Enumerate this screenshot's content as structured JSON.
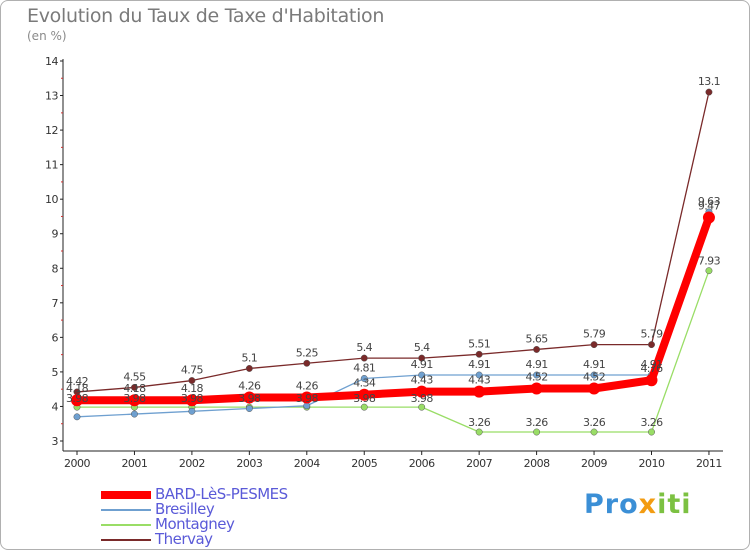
{
  "chart_data": {
    "type": "line",
    "title": "Evolution du Taux de Taxe d'Habitation",
    "subtitle": "(en %)",
    "xlabel": "",
    "ylabel": "",
    "x": [
      "2000",
      "2001",
      "2002",
      "2003",
      "2004",
      "2005",
      "2006",
      "2007",
      "2008",
      "2009",
      "2010",
      "2011"
    ],
    "ylim": [
      3,
      14
    ],
    "yticks": [
      3,
      4,
      5,
      6,
      7,
      8,
      9,
      10,
      11,
      12,
      13,
      14
    ],
    "grid": false,
    "legend_position": "bottom-left",
    "series": [
      {
        "name": "BARD-LèS-PESMES",
        "color": "#ff0000",
        "emphasis": true,
        "values": [
          4.18,
          4.18,
          4.18,
          4.26,
          4.26,
          4.34,
          4.43,
          4.43,
          4.52,
          4.52,
          4.76,
          9.47
        ]
      },
      {
        "name": "Bresilley",
        "color": "#6fa0d0",
        "values": [
          3.7,
          3.78,
          3.86,
          3.94,
          4.02,
          4.81,
          4.91,
          4.91,
          4.91,
          4.91,
          4.91,
          9.63
        ]
      },
      {
        "name": "Montagney",
        "color": "#99dd66",
        "values": [
          3.98,
          3.98,
          3.98,
          3.98,
          3.98,
          3.98,
          3.98,
          3.26,
          3.26,
          3.26,
          3.26,
          7.93
        ]
      },
      {
        "name": "Thervay",
        "color": "#7a2a2a",
        "values": [
          4.42,
          4.55,
          4.75,
          5.1,
          5.25,
          5.4,
          5.4,
          5.51,
          5.65,
          5.79,
          5.79,
          13.1
        ]
      }
    ],
    "point_labels": {
      "Thervay": [
        "4.42",
        "4.55",
        "4.75",
        "5.1",
        "5.25",
        "5.4",
        "5.4",
        "5.51",
        "5.65",
        "5.79",
        "5.79",
        "13.1"
      ],
      "Bresilley": [
        "",
        "",
        "",
        "",
        "",
        "4.81",
        "4.91",
        "4.91",
        "4.91",
        "4.91",
        "4.91",
        "9.63"
      ],
      "Montagney": [
        "3.98",
        "3.98",
        "3.98",
        "3.98",
        "3.98",
        "3.98",
        "3.98",
        "3.26",
        "3.26",
        "3.26",
        "3.26",
        "7.93"
      ],
      "BARD-LèS-PESMES": [
        "4.18",
        "4.18",
        "4.18",
        "4.26",
        "4.26",
        "4.34",
        "4.43",
        "4.43",
        "4.52",
        "4.52",
        "4.76",
        "9.47"
      ]
    }
  },
  "logo": {
    "part1": "Pro",
    "part2": "x",
    "part3": "iti"
  }
}
